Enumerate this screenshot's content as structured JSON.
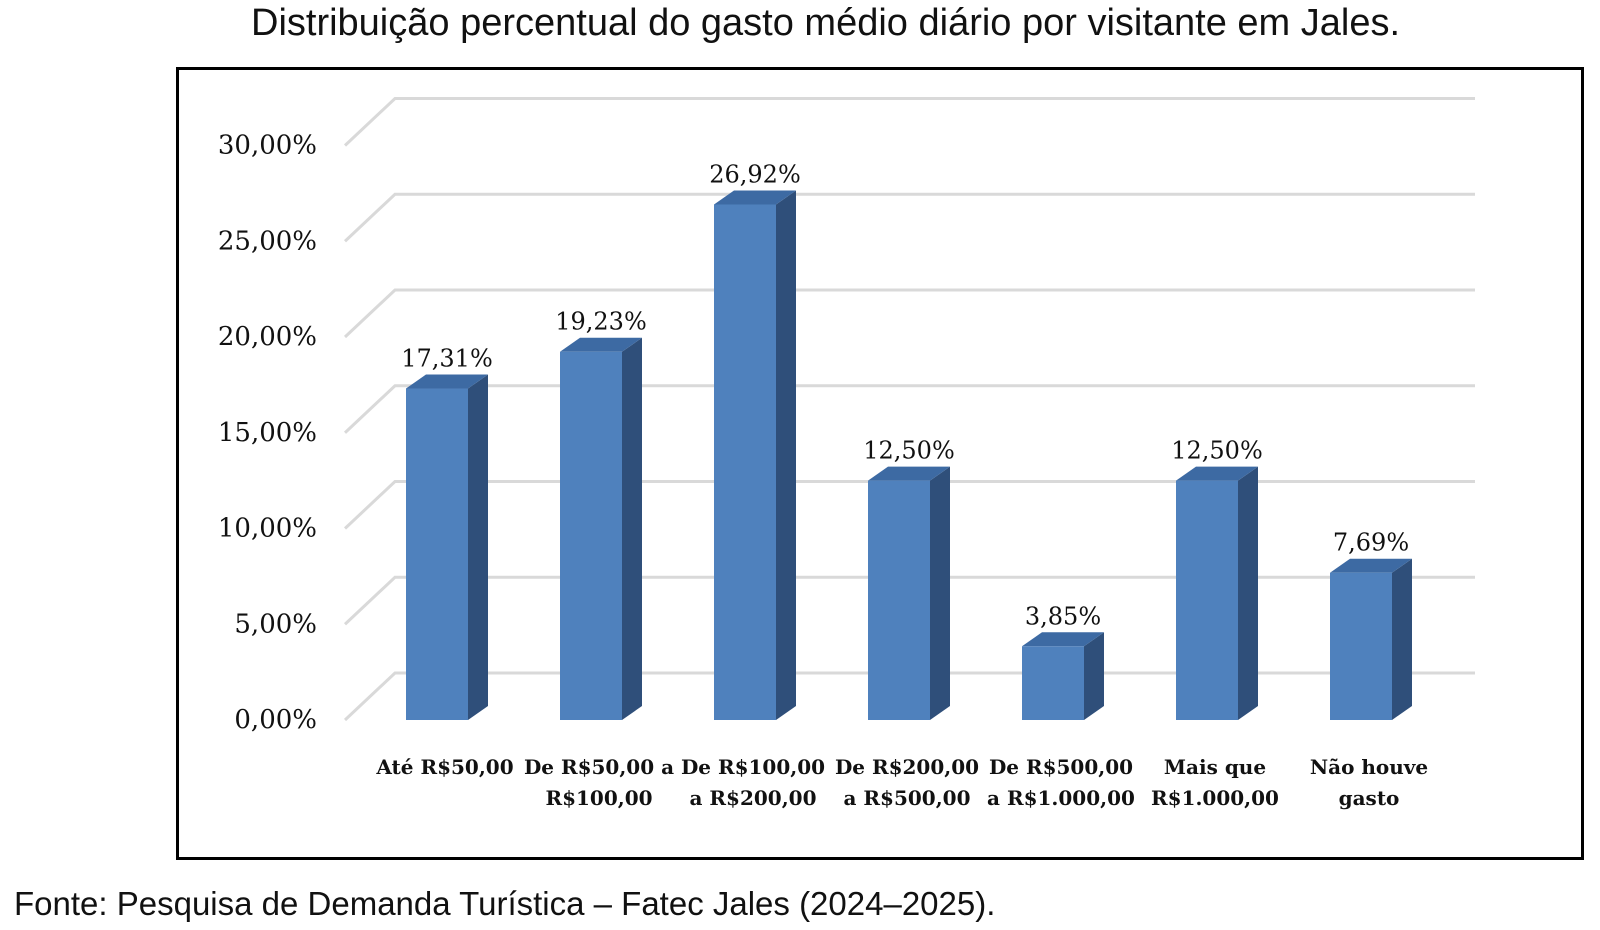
{
  "title": "Distribuição percentual do gasto médio diário por visitante em Jales.",
  "source": "Fonte: Pesquisa de Demanda Turística – Fatec Jales (2024–2025).",
  "colors": {
    "bar_front": "#4f81bd",
    "bar_side": "#2f4f7a",
    "bar_top": "#3d6aa3",
    "grid": "#d9d9d9"
  },
  "chart_data": {
    "type": "bar",
    "categories": [
      [
        "Até R$50,00"
      ],
      [
        "De R$50,00 a",
        "R$100,00"
      ],
      [
        "De R$100,00",
        "a R$200,00"
      ],
      [
        "De R$200,00",
        "a R$500,00"
      ],
      [
        "De R$500,00",
        "a R$1.000,00"
      ],
      [
        "Mais que",
        "R$1.000,00"
      ],
      [
        "Não houve",
        "gasto"
      ]
    ],
    "values": [
      17.31,
      19.23,
      26.92,
      12.5,
      3.85,
      12.5,
      7.69
    ],
    "data_labels": [
      "17,31%",
      "19,23%",
      "26,92%",
      "12,50%",
      "3,85%",
      "12,50%",
      "7,69%"
    ],
    "y_ticks": [
      0,
      5,
      10,
      15,
      20,
      25,
      30
    ],
    "y_tick_labels": [
      "0,00%",
      "5,00%",
      "10,00%",
      "15,00%",
      "20,00%",
      "25,00%",
      "30,00%"
    ],
    "ylim": [
      0,
      30
    ],
    "grid": true,
    "style": "3d-column"
  }
}
